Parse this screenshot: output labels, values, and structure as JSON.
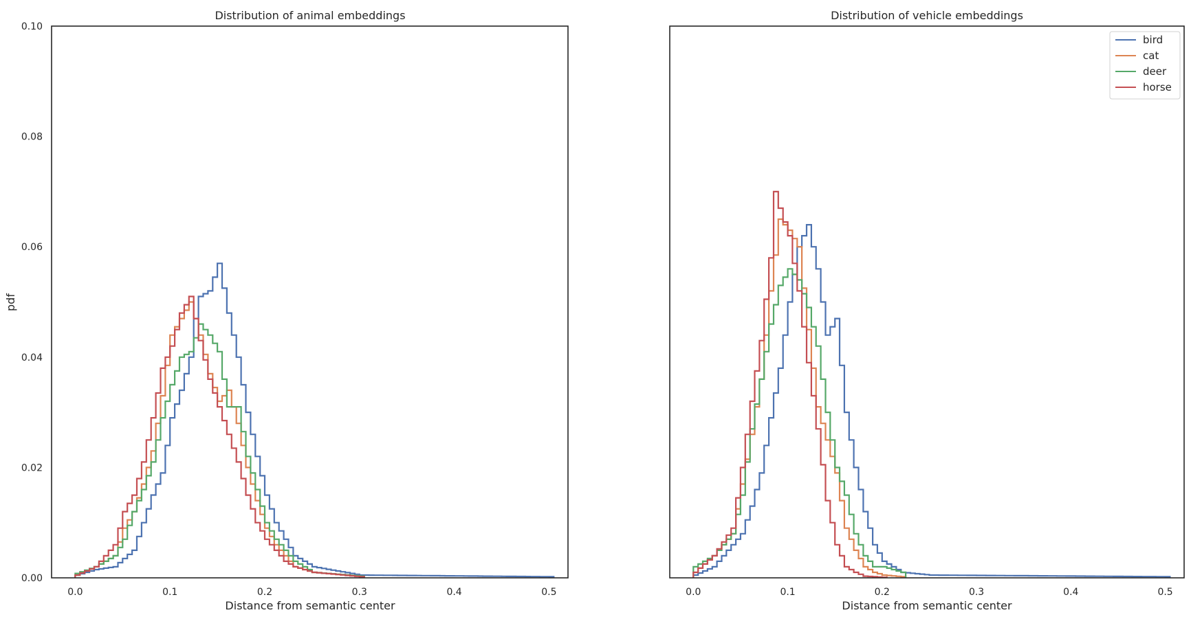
{
  "colors": {
    "bird": "#4c72b0",
    "cat": "#dd8452",
    "deer": "#55a868",
    "horse": "#c44e52",
    "axes": "#262626"
  },
  "chart_data": [
    {
      "type": "histogram",
      "title": "Distribution of animal embeddings",
      "xlabel": "Distance from semantic center",
      "ylabel": "pdf",
      "xlim": [
        -0.025,
        0.52
      ],
      "ylim": [
        0,
        0.1
      ],
      "xticks": [
        "0.0",
        "0.1",
        "0.2",
        "0.3",
        "0.4",
        "0.5"
      ],
      "yticks": [
        "0.00",
        "0.02",
        "0.04",
        "0.06",
        "0.08",
        "0.10"
      ],
      "legend": false,
      "grid": false,
      "series": [
        {
          "name": "bird",
          "color": "#4c72b0",
          "x": [
            0.0,
            0.02,
            0.04,
            0.06,
            0.07,
            0.08,
            0.09,
            0.1,
            0.11,
            0.12,
            0.125,
            0.13,
            0.14,
            0.15,
            0.16,
            0.17,
            0.18,
            0.19,
            0.2,
            0.21,
            0.22,
            0.23,
            0.25,
            0.3,
            0.5
          ],
          "y": [
            0.0005,
            0.0015,
            0.002,
            0.005,
            0.01,
            0.015,
            0.019,
            0.029,
            0.034,
            0.04,
            0.047,
            0.051,
            0.052,
            0.057,
            0.048,
            0.04,
            0.03,
            0.022,
            0.015,
            0.01,
            0.007,
            0.004,
            0.002,
            0.0005,
            0.0002
          ]
        },
        {
          "name": "cat",
          "color": "#dd8452",
          "x": [
            0.0,
            0.02,
            0.04,
            0.05,
            0.06,
            0.07,
            0.08,
            0.09,
            0.1,
            0.11,
            0.12,
            0.13,
            0.14,
            0.15,
            0.16,
            0.17,
            0.18,
            0.19,
            0.2,
            0.21,
            0.22,
            0.23,
            0.25,
            0.3
          ],
          "y": [
            0.0005,
            0.002,
            0.004,
            0.009,
            0.012,
            0.017,
            0.023,
            0.033,
            0.044,
            0.047,
            0.05,
            0.044,
            0.037,
            0.032,
            0.034,
            0.028,
            0.02,
            0.014,
            0.009,
            0.006,
            0.004,
            0.002,
            0.001,
            0.0003
          ]
        },
        {
          "name": "deer",
          "color": "#55a868",
          "x": [
            0.0,
            0.02,
            0.04,
            0.05,
            0.06,
            0.07,
            0.08,
            0.09,
            0.1,
            0.11,
            0.12,
            0.13,
            0.14,
            0.15,
            0.16,
            0.17,
            0.18,
            0.19,
            0.2,
            0.21,
            0.22,
            0.23,
            0.25,
            0.3
          ],
          "y": [
            0.0008,
            0.002,
            0.004,
            0.007,
            0.012,
            0.016,
            0.021,
            0.029,
            0.035,
            0.04,
            0.041,
            0.046,
            0.044,
            0.041,
            0.031,
            0.031,
            0.022,
            0.016,
            0.01,
            0.007,
            0.005,
            0.003,
            0.001,
            0.0003
          ]
        },
        {
          "name": "horse",
          "color": "#c44e52",
          "x": [
            0.0,
            0.02,
            0.04,
            0.05,
            0.06,
            0.07,
            0.08,
            0.09,
            0.1,
            0.11,
            0.12,
            0.13,
            0.14,
            0.15,
            0.16,
            0.17,
            0.18,
            0.19,
            0.2,
            0.21,
            0.22,
            0.23,
            0.25,
            0.3
          ],
          "y": [
            0.0005,
            0.002,
            0.006,
            0.012,
            0.015,
            0.021,
            0.029,
            0.038,
            0.042,
            0.048,
            0.051,
            0.043,
            0.036,
            0.031,
            0.026,
            0.021,
            0.015,
            0.01,
            0.007,
            0.005,
            0.003,
            0.002,
            0.001,
            0.0002
          ]
        }
      ]
    },
    {
      "type": "histogram",
      "title": "Distribution of vehicle embeddings",
      "xlabel": "Distance from semantic center",
      "ylabel": "",
      "xlim": [
        -0.025,
        0.52
      ],
      "ylim": [
        0,
        0.1
      ],
      "xticks": [
        "0.0",
        "0.1",
        "0.2",
        "0.3",
        "0.4",
        "0.5"
      ],
      "yticks": [],
      "legend": true,
      "legend_position": "top-right",
      "grid": false,
      "series": [
        {
          "name": "bird",
          "color": "#4c72b0",
          "x": [
            0.0,
            0.02,
            0.03,
            0.05,
            0.06,
            0.07,
            0.08,
            0.09,
            0.1,
            0.105,
            0.11,
            0.12,
            0.13,
            0.14,
            0.15,
            0.16,
            0.17,
            0.18,
            0.19,
            0.2,
            0.21,
            0.22,
            0.25,
            0.5
          ],
          "y": [
            0.0005,
            0.002,
            0.004,
            0.008,
            0.013,
            0.019,
            0.029,
            0.038,
            0.05,
            0.055,
            0.06,
            0.064,
            0.056,
            0.044,
            0.047,
            0.03,
            0.02,
            0.012,
            0.006,
            0.003,
            0.002,
            0.001,
            0.0005,
            0.0002
          ]
        },
        {
          "name": "cat",
          "color": "#dd8452",
          "x": [
            0.0,
            0.02,
            0.04,
            0.05,
            0.06,
            0.07,
            0.08,
            0.09,
            0.1,
            0.11,
            0.12,
            0.13,
            0.14,
            0.15,
            0.16,
            0.17,
            0.18,
            0.19,
            0.2,
            0.22
          ],
          "y": [
            0.001,
            0.004,
            0.008,
            0.017,
            0.026,
            0.036,
            0.052,
            0.065,
            0.063,
            0.06,
            0.045,
            0.031,
            0.025,
            0.019,
            0.009,
            0.005,
            0.002,
            0.001,
            0.0005,
            0.0002
          ]
        },
        {
          "name": "deer",
          "color": "#55a868",
          "x": [
            0.0,
            0.02,
            0.04,
            0.05,
            0.06,
            0.07,
            0.08,
            0.09,
            0.1,
            0.11,
            0.12,
            0.13,
            0.14,
            0.15,
            0.16,
            0.17,
            0.18,
            0.19,
            0.2,
            0.22
          ],
          "y": [
            0.002,
            0.004,
            0.008,
            0.015,
            0.027,
            0.036,
            0.046,
            0.053,
            0.056,
            0.054,
            0.049,
            0.042,
            0.03,
            0.02,
            0.015,
            0.008,
            0.004,
            0.002,
            0.002,
            0.001
          ]
        },
        {
          "name": "horse",
          "color": "#c44e52",
          "x": [
            0.0,
            0.02,
            0.04,
            0.05,
            0.06,
            0.07,
            0.08,
            0.085,
            0.09,
            0.1,
            0.11,
            0.12,
            0.13,
            0.14,
            0.15,
            0.16,
            0.17,
            0.18,
            0.2
          ],
          "y": [
            0.001,
            0.004,
            0.009,
            0.02,
            0.032,
            0.043,
            0.058,
            0.07,
            0.067,
            0.062,
            0.052,
            0.039,
            0.027,
            0.014,
            0.006,
            0.002,
            0.001,
            0.0003,
            0.0001
          ]
        }
      ]
    }
  ]
}
